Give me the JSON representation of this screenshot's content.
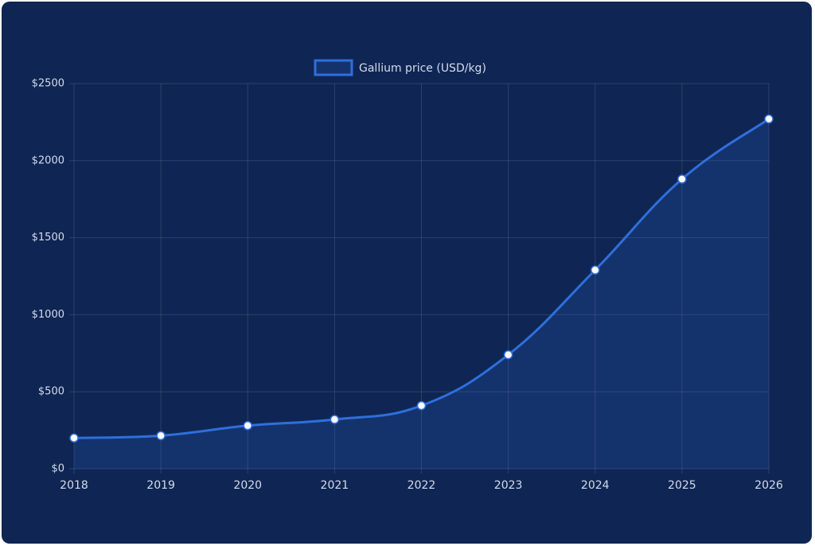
{
  "chart_data": {
    "type": "line",
    "categories": [
      "2018",
      "2019",
      "2020",
      "2021",
      "2022",
      "2023",
      "2024",
      "2025",
      "2026"
    ],
    "series": [
      {
        "name": "Gallium price (USD/kg)",
        "color": "#2f6fdc",
        "values": [
          200,
          215,
          280,
          320,
          410,
          740,
          1290,
          1880,
          2270
        ]
      }
    ],
    "ylim": [
      0,
      2500
    ],
    "yticks": [
      {
        "value": 0,
        "label": "$0"
      },
      {
        "value": 500,
        "label": "$500"
      },
      {
        "value": 1000,
        "label": "$1000"
      },
      {
        "value": 1500,
        "label": "$1500"
      },
      {
        "value": 2000,
        "label": "$2000"
      },
      {
        "value": 2500,
        "label": "$2500"
      }
    ],
    "grid": true,
    "area": true,
    "legend": "top"
  }
}
